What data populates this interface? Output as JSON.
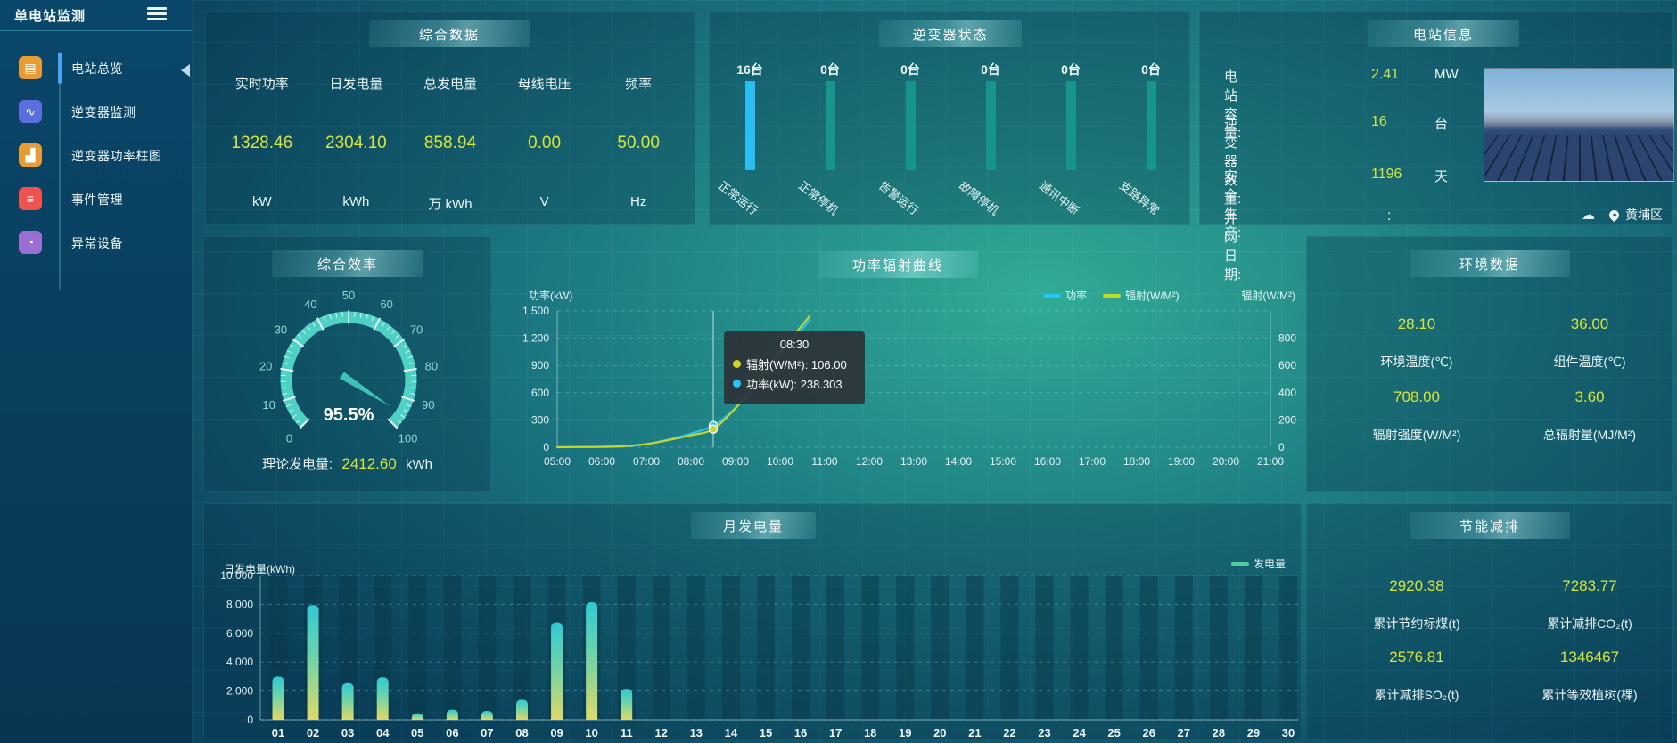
{
  "app": {
    "title": "单电站监测"
  },
  "sidebar": {
    "items": [
      {
        "label": "电站总览",
        "glyph": "▤",
        "color": "#e79c35",
        "active": true
      },
      {
        "label": "逆变器监测",
        "glyph": "∿",
        "color": "#5a6fdd",
        "active": false
      },
      {
        "label": "逆变器功率柱图",
        "glyph": "▟",
        "color": "#e79c35",
        "active": false
      },
      {
        "label": "事件管理",
        "glyph": "≡",
        "color": "#ef5350",
        "active": false
      },
      {
        "label": "异常设备",
        "glyph": "◔",
        "color": "#9a6fd4",
        "active": false
      }
    ]
  },
  "summary": {
    "title": "综合数据",
    "metrics": [
      {
        "label": "实时功率",
        "value": "1328.46",
        "unit": "kW"
      },
      {
        "label": "日发电量",
        "value": "2304.10",
        "unit": "kWh"
      },
      {
        "label": "总发电量",
        "value": "858.94",
        "unit": "万 kWh"
      },
      {
        "label": "母线电压",
        "value": "0.00",
        "unit": "V"
      },
      {
        "label": "频率",
        "value": "50.00",
        "unit": "Hz"
      }
    ]
  },
  "inverter_status": {
    "title": "逆变器状态"
  },
  "station_info": {
    "title": "电站信息",
    "rows": [
      {
        "label": "电站容量:",
        "value": "2.41",
        "unit": "MW"
      },
      {
        "label": "逆变器数量:",
        "value": "16",
        "unit": "台"
      },
      {
        "label": "安全生产:",
        "value": "1196",
        "unit": "天"
      },
      {
        "label": "并网日期:",
        "value": ":",
        "unit": ""
      }
    ],
    "location": "黄埔区",
    "weather_icon": "☁"
  },
  "efficiency": {
    "title": "综合效率",
    "value_text": "95.5%",
    "theory_label": "理论发电量:",
    "theory_value": "2412.60",
    "theory_unit": "kWh"
  },
  "power_curve": {
    "title": "功率辐射曲线",
    "tooltip": {
      "time": "08:30",
      "items": [
        {
          "text": "辐射(W/M²): 106.00",
          "color": "#d4d21f"
        },
        {
          "text": "功率(kW): 238.303",
          "color": "#29c3f5"
        }
      ]
    }
  },
  "environment": {
    "title": "环境数据",
    "items": [
      {
        "value": "28.10",
        "label": "环境温度(℃)"
      },
      {
        "value": "36.00",
        "label": "组件温度(℃)"
      },
      {
        "value": "708.00",
        "label": "辐射强度(W/M²)"
      },
      {
        "value": "3.60",
        "label": "总辐射量(MJ/M²)"
      }
    ]
  },
  "monthly": {
    "title": "月发电量"
  },
  "saving": {
    "title": "节能减排",
    "items": [
      {
        "value": "2920.38",
        "label": "累计节约标煤(t)"
      },
      {
        "value": "7283.77",
        "label": "累计减排CO₂(t)"
      },
      {
        "value": "2576.81",
        "label": "累计减排SO₂(t)"
      },
      {
        "value": "1346467",
        "label": "累计等效植树(棵)"
      }
    ]
  },
  "chart_data": [
    {
      "id": "inverter-status",
      "type": "bar",
      "title": "逆变器状态",
      "categories": [
        "正常运行",
        "正常停机",
        "告警运行",
        "故障停机",
        "通讯中断",
        "支路异常"
      ],
      "values": [
        16,
        0,
        0,
        0,
        0,
        0
      ],
      "value_labels": [
        "16台",
        "0台",
        "0台",
        "0台",
        "0台",
        "0台"
      ],
      "bar_colors": [
        "#29bdf2",
        "#17948c",
        "#17948c",
        "#17948c",
        "#17948c",
        "#17948c"
      ],
      "layout_note": "bars drawn full height, color marks active count"
    },
    {
      "id": "power-radiation",
      "type": "line",
      "title": "功率辐射曲线",
      "x": [
        "05:00",
        "06:00",
        "07:00",
        "08:00",
        "09:00",
        "10:00",
        "11:00",
        "12:00",
        "13:00",
        "14:00",
        "15:00",
        "16:00",
        "17:00",
        "18:00",
        "19:00",
        "20:00",
        "21:00"
      ],
      "ylabel_left": "功率(kW)",
      "ylim_left": [
        0,
        1500
      ],
      "yticks_left": [
        "0",
        "300",
        "600",
        "900",
        "1,200",
        "1,500"
      ],
      "ylabel_right": "辐射(W/M²)",
      "ylim_right": [
        0,
        800
      ],
      "yticks_right": [
        "0",
        "200",
        "400",
        "600",
        "800"
      ],
      "legend": [
        "功率",
        "辐射(W/M²)"
      ],
      "legend_position": "top-right",
      "grid": true,
      "pointer_x": "08:30",
      "series": [
        {
          "name": "功率",
          "axis": "left",
          "color": "#29c3f5",
          "points": [
            [
              "05:00",
              0
            ],
            [
              "06:00",
              5
            ],
            [
              "06:30",
              12
            ],
            [
              "07:00",
              35
            ],
            [
              "07:30",
              85
            ],
            [
              "08:00",
              150
            ],
            [
              "08:30",
              238.303
            ],
            [
              "09:00",
              430
            ],
            [
              "09:30",
              700
            ],
            [
              "10:00",
              1020
            ],
            [
              "10:40",
              1400
            ]
          ]
        },
        {
          "name": "辐射(W/M²)",
          "axis": "right",
          "color": "#c3d629",
          "points": [
            [
              "05:00",
              0
            ],
            [
              "06:00",
              2
            ],
            [
              "06:30",
              6
            ],
            [
              "07:00",
              18
            ],
            [
              "07:30",
              42
            ],
            [
              "08:00",
              70
            ],
            [
              "08:30",
              106
            ],
            [
              "09:00",
              230
            ],
            [
              "09:30",
              390
            ],
            [
              "10:00",
              560
            ],
            [
              "10:40",
              770
            ]
          ]
        }
      ]
    },
    {
      "id": "monthly-generation",
      "type": "bar",
      "title": "月发电量",
      "ylabel": "日发电量(kWh)",
      "ylim": [
        0,
        10000
      ],
      "yticks": [
        "0",
        "2,000",
        "4,000",
        "6,000",
        "8,000",
        "10,000"
      ],
      "legend": "发电量",
      "legend_color": "#52c9a2",
      "bar_gradient": [
        "#e0d967",
        "#6ed3a9",
        "#31c9d4"
      ],
      "categories": [
        "01",
        "02",
        "03",
        "04",
        "05",
        "06",
        "07",
        "08",
        "09",
        "10",
        "11",
        "12",
        "13",
        "14",
        "15",
        "16",
        "17",
        "18",
        "19",
        "20",
        "21",
        "22",
        "23",
        "24",
        "25",
        "26",
        "27",
        "28",
        "29",
        "30"
      ],
      "values": [
        3000,
        7950,
        2550,
        2950,
        450,
        700,
        620,
        1400,
        6750,
        8150,
        2150,
        0,
        0,
        0,
        0,
        0,
        0,
        0,
        0,
        0,
        0,
        0,
        0,
        0,
        0,
        0,
        0,
        0,
        0,
        0
      ]
    },
    {
      "id": "efficiency-gauge",
      "type": "gauge",
      "min": 0,
      "max": 100,
      "value": 95.5,
      "tick_labels": [
        "0",
        "10",
        "20",
        "30",
        "40",
        "50",
        "60",
        "70",
        "80",
        "90",
        "100"
      ],
      "band_color": "#4fd0c5",
      "needle_color": "#3ec2b6"
    }
  ]
}
